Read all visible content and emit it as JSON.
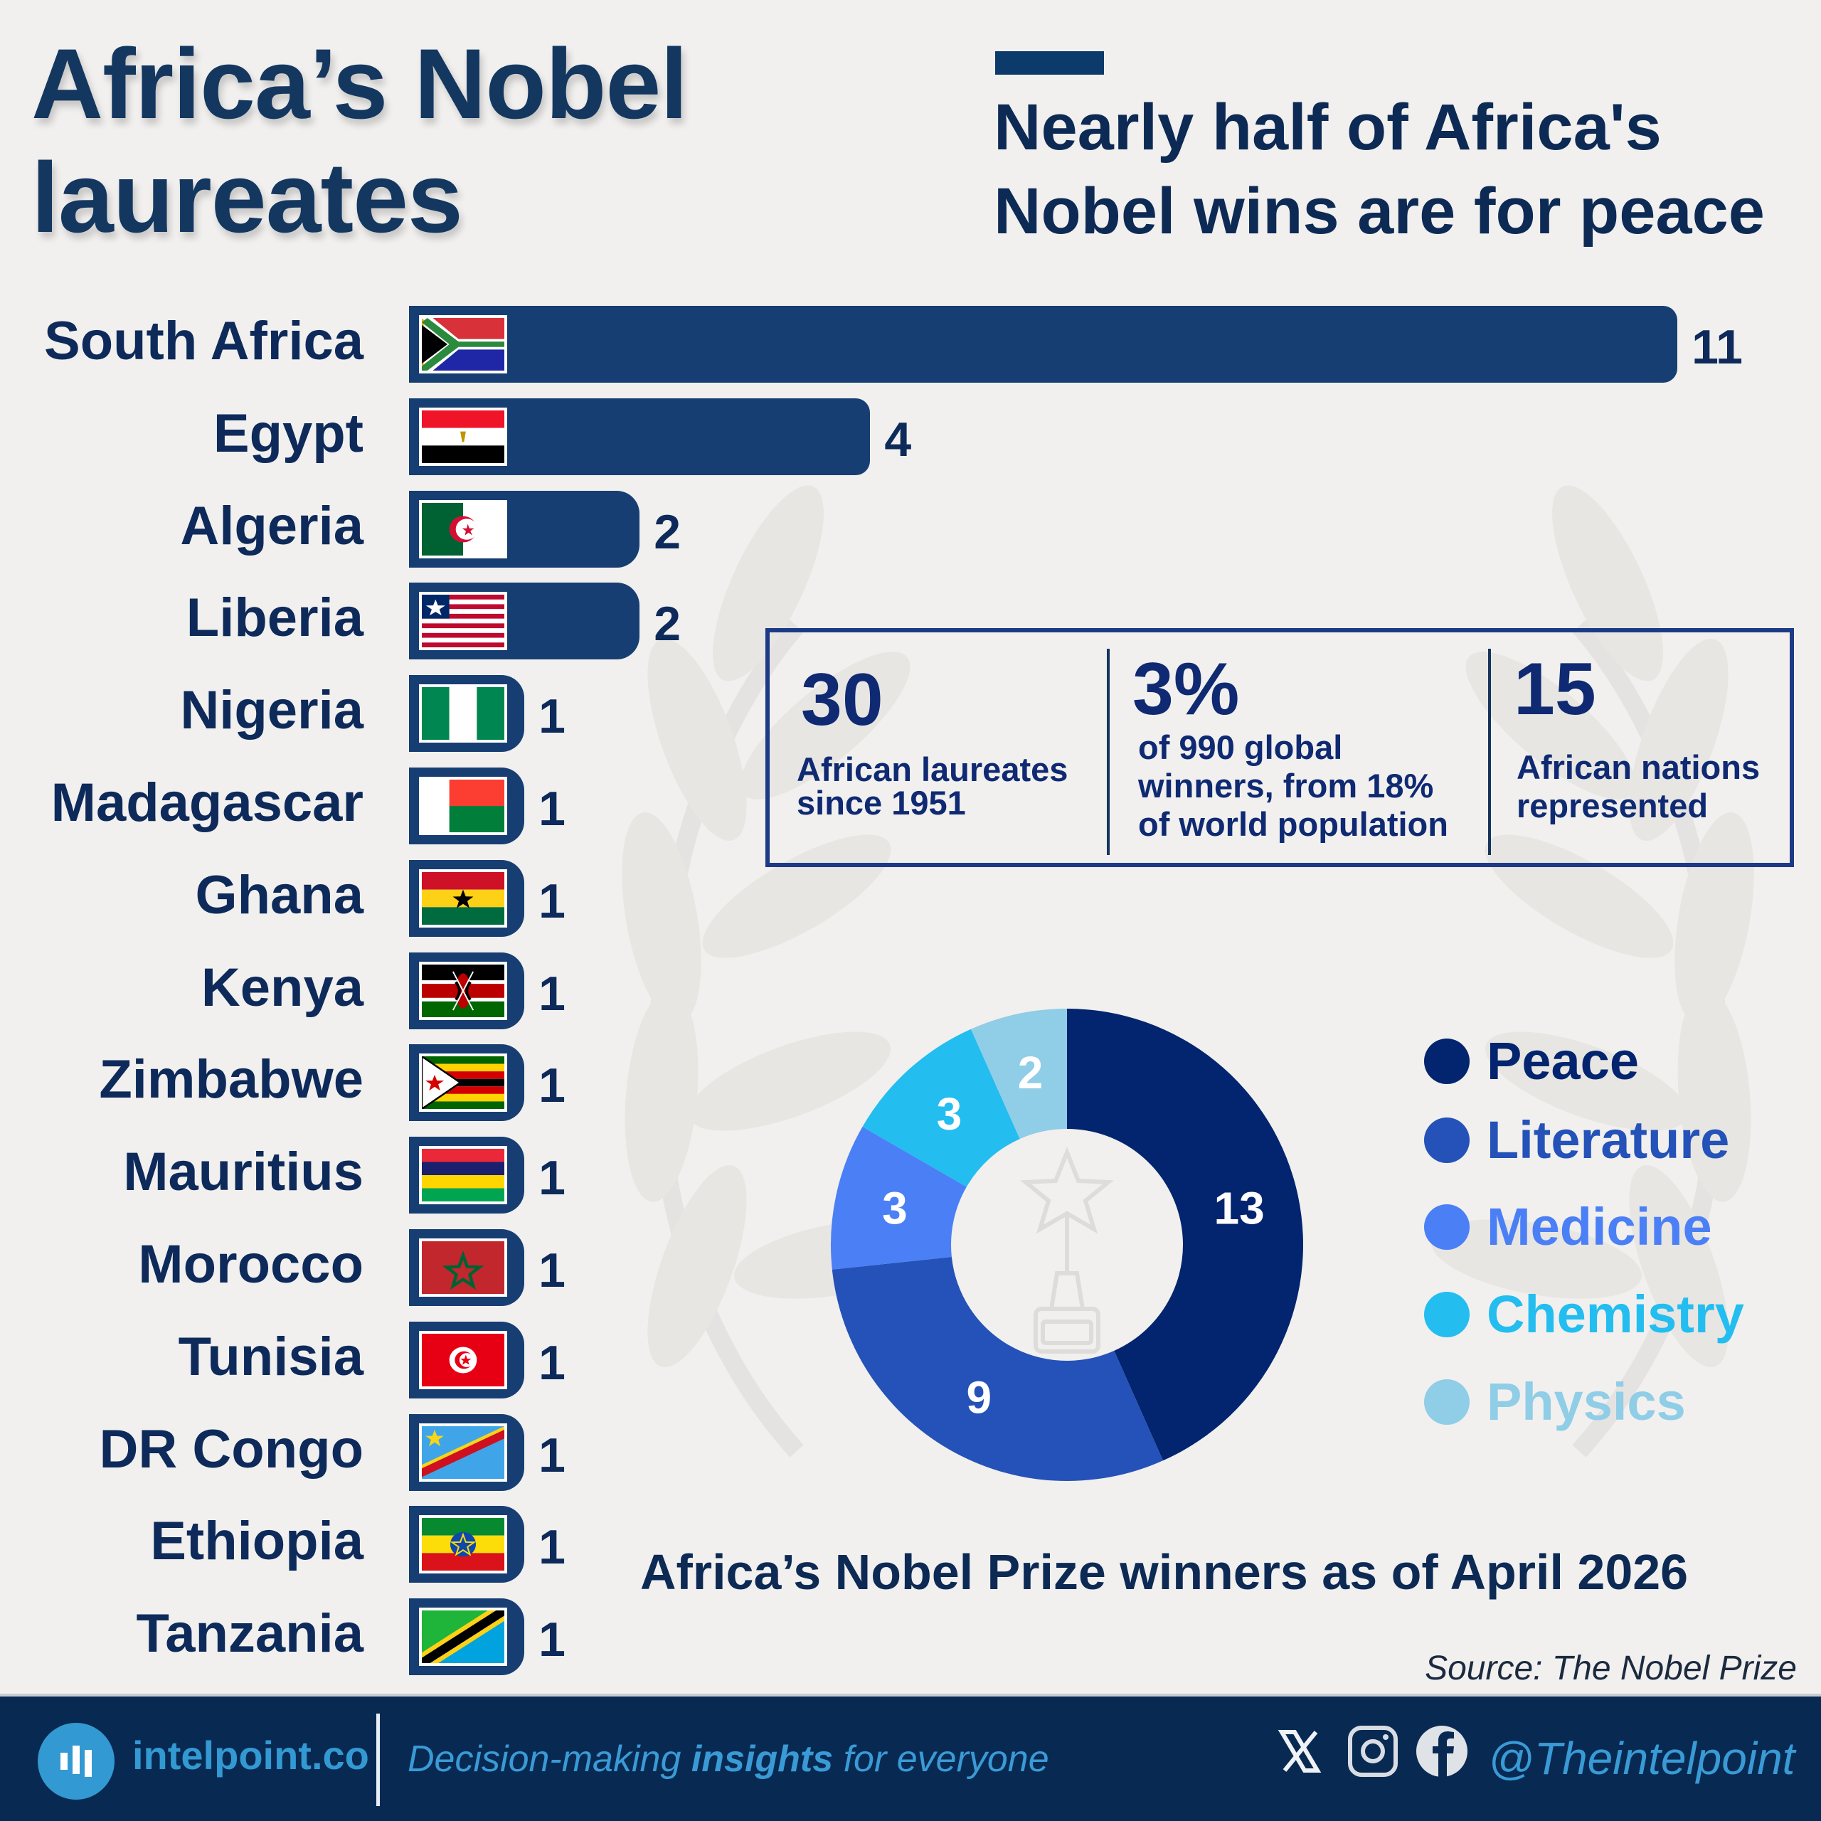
{
  "header": {
    "title_line1": "Africa’s Nobel",
    "title_line2": "laureates",
    "subtitle_line1": "Nearly half of Africa's",
    "subtitle_line2": "Nobel wins are for peace"
  },
  "colors": {
    "bar": "#173e72",
    "peace": "#03246e",
    "literature": "#2452b8",
    "medicine": "#4b7ff5",
    "chemistry": "#23bdf0",
    "physics": "#90cde6"
  },
  "stats": [
    {
      "value": "30",
      "text_line1": "African laureates",
      "text_line2": "since 1951"
    },
    {
      "value": "3%",
      "text_line1": "of 990 global",
      "text_line2": "winners, from 18%",
      "text_line3": "of world population"
    },
    {
      "value": "15",
      "text_line1": "African nations",
      "text_line2": "represented"
    }
  ],
  "caption": "Africa’s Nobel Prize winners as of April 2026",
  "source": "Source: The Nobel Prize",
  "footer": {
    "logo_text": "intelpoint.co",
    "tagline_pre": "Decision-making ",
    "tagline_bold": "insights",
    "tagline_post": " for everyone",
    "handle": "@Theintelpoint",
    "icons": [
      "x-icon",
      "instagram-icon",
      "facebook-icon"
    ]
  },
  "chart_data": [
    {
      "type": "bar",
      "orientation": "horizontal",
      "title": "Africa’s Nobel laureates",
      "categories": [
        "South Africa",
        "Egypt",
        "Algeria",
        "Liberia",
        "Nigeria",
        "Madagascar",
        "Ghana",
        "Kenya",
        "Zimbabwe",
        "Mauritius",
        "Morocco",
        "Tunisia",
        "DR Congo",
        "Ethiopia",
        "Tanzania"
      ],
      "values": [
        11,
        4,
        2,
        2,
        1,
        1,
        1,
        1,
        1,
        1,
        1,
        1,
        1,
        1,
        1
      ],
      "flags": [
        "south-africa",
        "egypt",
        "algeria",
        "liberia",
        "nigeria",
        "madagascar",
        "ghana",
        "kenya",
        "zimbabwe",
        "mauritius",
        "morocco",
        "tunisia",
        "dr-congo",
        "ethiopia",
        "tanzania"
      ],
      "xlim": [
        0,
        11
      ],
      "grid": false
    },
    {
      "type": "pie",
      "donut": true,
      "categories": [
        "Peace",
        "Literature",
        "Medicine",
        "Chemistry",
        "Physics"
      ],
      "values": [
        13,
        9,
        3,
        3,
        2
      ],
      "legend": "right"
    }
  ]
}
